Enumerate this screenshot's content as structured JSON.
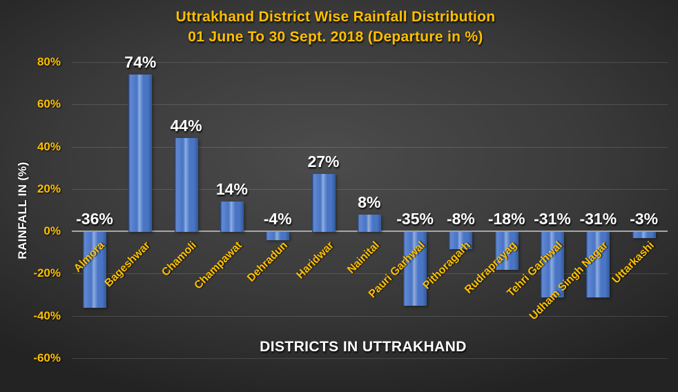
{
  "chart_data": {
    "type": "bar",
    "title": "Uttrakhand District Wise Rainfall Distribution",
    "subtitle": "01 June To 30 Sept. 2018 (Departure in %)",
    "xlabel": "DISTRICTS IN UTTRAKHAND",
    "ylabel": "RAINFALL IN (%)",
    "categories": [
      "Almora",
      "Bageshwar",
      "Chamoli",
      "Champawat",
      "Dehradun",
      "Haridwar",
      "Nainital",
      "Pauri Garhwal",
      "Pithoragarh",
      "Rudraprayag",
      "Tehri Garhwal",
      "Udham Singh Nagar",
      "Uttarkashi"
    ],
    "values": [
      -36,
      74,
      44,
      14,
      -4,
      27,
      8,
      -35,
      -8,
      -18,
      -31,
      -31,
      -3
    ],
    "data_labels": [
      "-36%",
      "74%",
      "44%",
      "14%",
      "-4%",
      "27%",
      "8%",
      "-35%",
      "-8%",
      "-18%",
      "-31%",
      "-31%",
      "-3%"
    ],
    "y_tick_labels": [
      "80%",
      "60%",
      "40%",
      "20%",
      "0%",
      "-20%",
      "-40%",
      "-60%"
    ],
    "y_tick_values": [
      80,
      60,
      40,
      20,
      0,
      -20,
      -40,
      -60
    ],
    "ylim": [
      -60,
      80
    ],
    "grid": true,
    "legend": "none",
    "colors": {
      "title": "#FFC000",
      "tick_label": "#FFC000",
      "category_label": "#FFC000",
      "axis_title": "#FFFFFF",
      "data_label": "#FFFFFF",
      "bar": "#4A75C4",
      "bar_light": "#6189D3",
      "bar_dark": "#365D9E",
      "bar_edge": "#2B4A87",
      "bar_stripe": "#7FA3E2",
      "gridline": "#5E5E5E",
      "axis_line": "#A8A8A8",
      "bg_center": "#4C4C4C",
      "bg_mid": "#3A3A3A",
      "bg_edge": "#232323"
    }
  }
}
